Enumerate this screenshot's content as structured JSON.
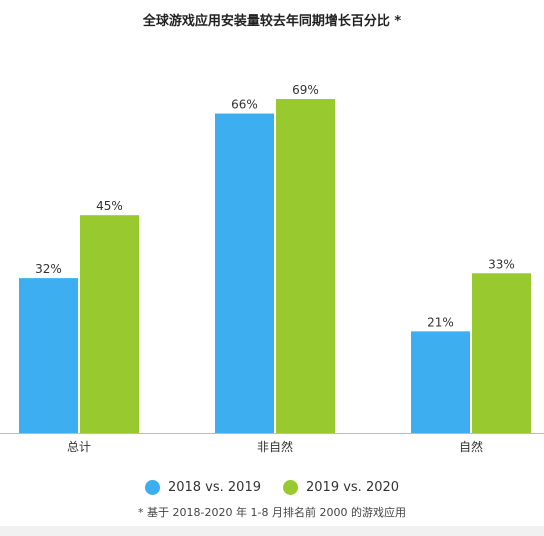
{
  "title": "全球游戏应用安装量较去年同期增长百分比 *",
  "footnote": "* 基于 2018-2020 年 1-8 月排名前 2000 的游戏应用",
  "colors": {
    "series1": "#3daef0",
    "series2": "#98c92f",
    "axis": "#bbbbbb"
  },
  "chart_data": {
    "type": "bar",
    "categories": [
      "总计",
      "非自然",
      "自然"
    ],
    "series": [
      {
        "name": "2018 vs. 2019",
        "values": [
          32,
          66,
          21
        ],
        "labels": [
          "32%",
          "66%",
          "21%"
        ]
      },
      {
        "name": "2019 vs. 2020",
        "values": [
          45,
          69,
          33
        ],
        "labels": [
          "45%",
          "69%",
          "33%"
        ]
      }
    ],
    "ylim": [
      0,
      75
    ],
    "grid": false,
    "legend_position": "bottom"
  }
}
